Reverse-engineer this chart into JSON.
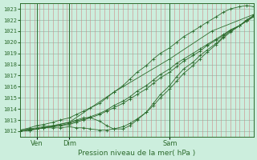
{
  "title": "Pression niveau de la mer( hPa )",
  "bg_color": "#cceedd",
  "line_color": "#2d6b2d",
  "grid_v_color": "#cc8888",
  "grid_h_color": "#99bbaa",
  "ylim": [
    1011.5,
    1023.5
  ],
  "yticks": [
    1012,
    1013,
    1014,
    1015,
    1016,
    1017,
    1018,
    1019,
    1020,
    1021,
    1022,
    1023
  ],
  "xtick_labels": [
    "Ven",
    "Dim",
    "Sam"
  ],
  "xtick_positions": [
    0.07,
    0.21,
    0.64
  ],
  "vline_positions": [
    0.07,
    0.21,
    0.64
  ],
  "num_v_gridlines": 50,
  "lines": [
    {
      "x": [
        0,
        0.07,
        0.21,
        0.4,
        0.64,
        0.82,
        1.0
      ],
      "y": [
        1012.0,
        1012.2,
        1012.8,
        1015.5,
        1018.5,
        1021.0,
        1022.5
      ]
    },
    {
      "x": [
        0,
        0.04,
        0.07,
        0.1,
        0.14,
        0.17,
        0.21,
        0.24,
        0.27,
        0.3,
        0.34,
        0.37,
        0.4,
        0.44,
        0.47,
        0.5,
        0.54,
        0.57,
        0.6,
        0.64,
        0.67,
        0.7,
        0.74,
        0.77,
        0.8,
        0.84,
        0.87,
        0.9,
        0.94,
        0.97,
        1.0
      ],
      "y": [
        1012.0,
        1012.1,
        1012.2,
        1012.3,
        1012.3,
        1012.3,
        1012.4,
        1012.3,
        1012.3,
        1012.2,
        1012.1,
        1012.1,
        1012.2,
        1012.4,
        1012.7,
        1013.1,
        1013.7,
        1014.3,
        1015.0,
        1015.8,
        1016.5,
        1017.2,
        1017.9,
        1018.5,
        1019.1,
        1019.8,
        1020.4,
        1020.9,
        1021.5,
        1022.0,
        1022.4
      ]
    },
    {
      "x": [
        0,
        0.04,
        0.07,
        0.1,
        0.14,
        0.17,
        0.21,
        0.24,
        0.27,
        0.3,
        0.34,
        0.37,
        0.4,
        0.44,
        0.47,
        0.5,
        0.54,
        0.57,
        0.6,
        0.64,
        0.67,
        0.7,
        0.74,
        0.77,
        0.8,
        0.84,
        0.87,
        0.9,
        0.94,
        0.97,
        1.0
      ],
      "y": [
        1012.0,
        1012.1,
        1012.2,
        1012.3,
        1012.4,
        1012.5,
        1012.7,
        1012.9,
        1013.1,
        1013.3,
        1013.6,
        1013.9,
        1014.3,
        1014.7,
        1015.1,
        1015.6,
        1016.1,
        1016.6,
        1017.1,
        1017.6,
        1018.1,
        1018.5,
        1019.0,
        1019.4,
        1019.8,
        1020.3,
        1020.7,
        1021.1,
        1021.5,
        1021.9,
        1022.3
      ]
    },
    {
      "x": [
        0,
        0.04,
        0.07,
        0.1,
        0.14,
        0.17,
        0.21,
        0.24,
        0.27,
        0.3,
        0.34,
        0.37,
        0.4,
        0.44,
        0.47,
        0.5,
        0.54,
        0.57,
        0.6,
        0.64,
        0.67,
        0.7,
        0.74,
        0.77,
        0.8,
        0.84,
        0.87,
        0.9,
        0.94,
        0.97,
        1.0
      ],
      "y": [
        1012.1,
        1012.2,
        1012.3,
        1012.4,
        1012.5,
        1012.6,
        1012.8,
        1013.0,
        1013.2,
        1013.2,
        1012.9,
        1012.5,
        1012.2,
        1012.2,
        1012.5,
        1013.0,
        1013.7,
        1014.5,
        1015.3,
        1016.1,
        1016.9,
        1017.6,
        1018.2,
        1018.8,
        1019.3,
        1019.9,
        1020.5,
        1021.0,
        1021.5,
        1022.0,
        1022.4
      ]
    },
    {
      "x": [
        0,
        0.04,
        0.07,
        0.1,
        0.14,
        0.17,
        0.21,
        0.24,
        0.27,
        0.3,
        0.34,
        0.37,
        0.4,
        0.44,
        0.47,
        0.5,
        0.54,
        0.57,
        0.6,
        0.64,
        0.67,
        0.7,
        0.74,
        0.77,
        0.8,
        0.84,
        0.87,
        0.9,
        0.94,
        0.97,
        1.0
      ],
      "y": [
        1012.1,
        1012.3,
        1012.5,
        1012.6,
        1012.8,
        1013.0,
        1013.2,
        1013.5,
        1013.8,
        1014.1,
        1014.5,
        1015.0,
        1015.5,
        1016.1,
        1016.7,
        1017.3,
        1017.9,
        1018.5,
        1019.0,
        1019.5,
        1020.0,
        1020.5,
        1021.0,
        1021.4,
        1021.8,
        1022.3,
        1022.7,
        1023.0,
        1023.2,
        1023.3,
        1023.2
      ]
    },
    {
      "x": [
        0,
        0.04,
        0.07,
        0.1,
        0.14,
        0.17,
        0.21,
        0.24,
        0.27,
        0.3,
        0.34,
        0.37,
        0.4,
        0.44,
        0.47,
        0.5,
        0.54,
        0.57,
        0.6,
        0.64,
        0.67,
        0.7,
        0.74,
        0.77,
        0.8,
        0.84,
        0.87,
        0.9,
        0.94,
        0.97,
        1.0
      ],
      "y": [
        1012.0,
        1012.1,
        1012.2,
        1012.3,
        1012.4,
        1012.5,
        1012.6,
        1012.8,
        1013.0,
        1013.2,
        1013.5,
        1013.8,
        1014.1,
        1014.5,
        1014.9,
        1015.3,
        1015.8,
        1016.3,
        1016.8,
        1017.3,
        1017.8,
        1018.3,
        1018.8,
        1019.2,
        1019.7,
        1020.2,
        1020.6,
        1021.1,
        1021.5,
        1021.9,
        1022.3
      ]
    }
  ]
}
